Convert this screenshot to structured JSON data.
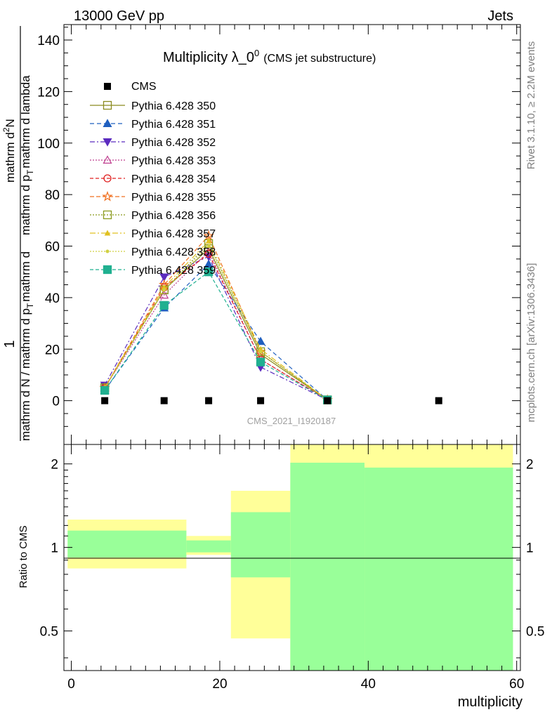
{
  "header": {
    "left": "13000 GeV pp",
    "right": "Jets"
  },
  "side_labels": {
    "rivet": "Rivet 3.1.10, ≥ 2.2M events",
    "mcplots": "mcplots.cern.ch [arXiv:1306.3436]"
  },
  "chart_data": {
    "type": "line",
    "title": "Multiplicity λ_0",
    "title_superscript": "0",
    "title_suffix": "(CMS jet substructure)",
    "analysis_label": "CMS_2021_I1920187",
    "ylabel": {
      "numerator_top": "1",
      "denominator_top": "mathrm d N / mathrm d p",
      "denominator_top_sub": "T",
      "denominator_top_tail": "mathrm d",
      "numerator": "mathrm d",
      "numerator_sup": "2",
      "numerator_tail": "N",
      "denominator": "mathrm d p",
      "denominator_sub": "T",
      "denominator_tail": "mathrm d lambda"
    },
    "ylabel_ratio": "Ratio to CMS",
    "xlabel": "multiplicity",
    "xlim": [
      -1,
      60.5
    ],
    "ylim": [
      -17,
      146
    ],
    "ratio_ylim": [
      0.36,
      2.35
    ],
    "x_ticks": [
      "0",
      "20",
      "40",
      "60"
    ],
    "y_ticks": [
      "0",
      "20",
      "40",
      "60",
      "80",
      "100",
      "120",
      "140"
    ],
    "ratio_ticks": [
      "0.5",
      "1",
      "2"
    ],
    "cms": {
      "name": "CMS",
      "x": [
        4.5,
        12.5,
        18.5,
        25.5,
        34.5,
        49.5
      ],
      "y": [
        0,
        0,
        0,
        0,
        0,
        0
      ]
    },
    "series": [
      {
        "name": "Pythia 6.428 350",
        "color": "#8b8b1f",
        "marker": "square-open",
        "dash": "",
        "x": [
          4.5,
          12.5,
          18.5,
          25.5,
          34.5
        ],
        "y": [
          5,
          43,
          59,
          18,
          0.3
        ]
      },
      {
        "name": "Pythia 6.428 351",
        "color": "#1f5fbf",
        "marker": "triangle-up-filled",
        "dash": "6,4",
        "x": [
          4.5,
          12.5,
          18.5,
          25.5,
          34.5
        ],
        "y": [
          4,
          36,
          53,
          23,
          0.3
        ]
      },
      {
        "name": "Pythia 6.428 352",
        "color": "#5b2bbf",
        "marker": "triangle-down-filled",
        "dash": "7,3,2,3",
        "x": [
          4.5,
          12.5,
          18.5,
          25.5,
          34.5
        ],
        "y": [
          6,
          48,
          56,
          13,
          0.3
        ]
      },
      {
        "name": "Pythia 6.428 353",
        "color": "#bf3f8f",
        "marker": "triangle-up-open",
        "dash": "2,2",
        "x": [
          4.5,
          12.5,
          18.5,
          25.5,
          34.5
        ],
        "y": [
          5,
          41,
          58,
          16,
          0.3
        ]
      },
      {
        "name": "Pythia 6.428 354",
        "color": "#e02020",
        "marker": "circle-open",
        "dash": "5,3",
        "x": [
          4.5,
          12.5,
          18.5,
          25.5,
          34.5
        ],
        "y": [
          5,
          44,
          57,
          16,
          0.3
        ]
      },
      {
        "name": "Pythia 6.428 355",
        "color": "#f07020",
        "marker": "star-open",
        "dash": "6,3",
        "x": [
          4.5,
          12.5,
          18.5,
          25.5,
          34.5
        ],
        "y": [
          5,
          45,
          64,
          19,
          0.3
        ]
      },
      {
        "name": "Pythia 6.428 356",
        "color": "#8b9b1f",
        "marker": "square-open",
        "dash": "2,2",
        "x": [
          4.5,
          12.5,
          18.5,
          25.5,
          34.5
        ],
        "y": [
          5,
          43,
          61,
          19,
          0.3
        ]
      },
      {
        "name": "Pythia 6.428 357",
        "color": "#e0c020",
        "marker": "tri-filled",
        "dash": "8,3,2,3",
        "x": [
          4.5,
          12.5,
          18.5,
          25.5,
          34.5
        ],
        "y": [
          5,
          44,
          62,
          20,
          0.3
        ]
      },
      {
        "name": "Pythia 6.428 358",
        "color": "#d0d040",
        "marker": "dot",
        "dash": "2,2",
        "x": [
          4.5,
          12.5,
          18.5,
          25.5,
          34.5
        ],
        "y": [
          5,
          43,
          60,
          19,
          0.3
        ]
      },
      {
        "name": "Pythia 6.428 359",
        "color": "#20b090",
        "marker": "square-filled",
        "dash": "5,3",
        "x": [
          4.5,
          12.5,
          18.5,
          25.5,
          34.5
        ],
        "y": [
          4,
          37,
          50,
          15,
          0.3
        ]
      }
    ],
    "ratio_bands": {
      "outer_color": "#ffff99",
      "inner_color": "#99ff99",
      "bins": [
        {
          "x0": -0.5,
          "x1": 15.5,
          "outer": [
            0.84,
            1.26
          ],
          "inner": [
            0.92,
            1.15
          ]
        },
        {
          "x0": 15.5,
          "x1": 21.5,
          "outer": [
            0.94,
            1.1
          ],
          "inner": [
            0.96,
            1.06
          ]
        },
        {
          "x0": 21.5,
          "x1": 29.5,
          "outer": [
            0.47,
            1.6
          ],
          "inner": [
            0.78,
            1.34
          ]
        },
        {
          "x0": 29.5,
          "x1": 39.5,
          "outer": [
            0.36,
            2.35
          ],
          "inner": [
            0.36,
            2.02
          ]
        },
        {
          "x0": 39.5,
          "x1": 59.5,
          "outer": [
            0.36,
            2.35
          ],
          "inner": [
            0.36,
            1.94
          ]
        }
      ]
    }
  }
}
